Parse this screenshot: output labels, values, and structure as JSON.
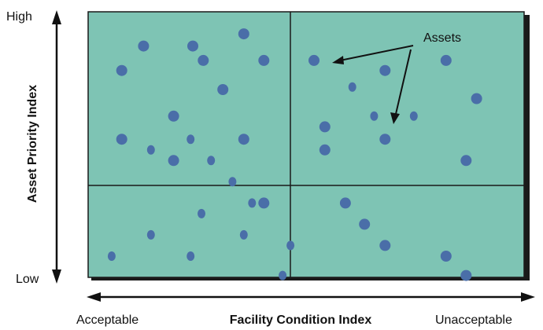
{
  "chart_data": {
    "type": "scatter",
    "title": "",
    "xlabel": "Facility Condition Index",
    "ylabel": "Asset Priority Index",
    "x_low_label": "Acceptable",
    "x_high_label": "Unacceptable",
    "y_low_label": "Low",
    "y_high_label": "High",
    "annotation": "Assets",
    "grid": "quadrants",
    "background_color": "#7ec4b4",
    "point_color": "#4a6ea8",
    "xlim": [
      0,
      100
    ],
    "ylim": [
      0,
      100
    ],
    "quadrant_split": {
      "x": 46.4,
      "y": 35.3
    },
    "points": [
      {
        "x": 12.7,
        "y": 87.1,
        "s": "big"
      },
      {
        "x": 24.0,
        "y": 87.1,
        "s": "big"
      },
      {
        "x": 35.7,
        "y": 91.7,
        "s": "big"
      },
      {
        "x": 7.7,
        "y": 77.9,
        "s": "big"
      },
      {
        "x": 26.4,
        "y": 81.7,
        "s": "big"
      },
      {
        "x": 40.3,
        "y": 81.7,
        "s": "big"
      },
      {
        "x": 30.9,
        "y": 70.7,
        "s": "big"
      },
      {
        "x": 19.6,
        "y": 60.7,
        "s": "big"
      },
      {
        "x": 7.7,
        "y": 52.0,
        "s": "big"
      },
      {
        "x": 14.4,
        "y": 48.0,
        "s": "small"
      },
      {
        "x": 23.5,
        "y": 52.0,
        "s": "small"
      },
      {
        "x": 35.7,
        "y": 52.0,
        "s": "big"
      },
      {
        "x": 19.6,
        "y": 44.0,
        "s": "big"
      },
      {
        "x": 28.2,
        "y": 44.0,
        "s": "small"
      },
      {
        "x": 33.1,
        "y": 36.0,
        "s": "small"
      },
      {
        "x": 51.8,
        "y": 81.7,
        "s": "big"
      },
      {
        "x": 68.1,
        "y": 77.9,
        "s": "big"
      },
      {
        "x": 82.1,
        "y": 81.7,
        "s": "big"
      },
      {
        "x": 60.6,
        "y": 71.7,
        "s": "small"
      },
      {
        "x": 89.1,
        "y": 67.3,
        "s": "big"
      },
      {
        "x": 65.6,
        "y": 60.7,
        "s": "small"
      },
      {
        "x": 74.7,
        "y": 60.7,
        "s": "small"
      },
      {
        "x": 54.3,
        "y": 56.7,
        "s": "big"
      },
      {
        "x": 68.1,
        "y": 52.0,
        "s": "big"
      },
      {
        "x": 54.3,
        "y": 48.0,
        "s": "big"
      },
      {
        "x": 86.7,
        "y": 44.0,
        "s": "big"
      },
      {
        "x": 37.6,
        "y": 28.0,
        "s": "small"
      },
      {
        "x": 40.3,
        "y": 28.0,
        "s": "big"
      },
      {
        "x": 26.0,
        "y": 24.0,
        "s": "small"
      },
      {
        "x": 14.4,
        "y": 16.0,
        "s": "small"
      },
      {
        "x": 35.7,
        "y": 16.0,
        "s": "small"
      },
      {
        "x": 5.4,
        "y": 8.0,
        "s": "small"
      },
      {
        "x": 23.5,
        "y": 8.0,
        "s": "small"
      },
      {
        "x": 44.6,
        "y": 0.7,
        "s": "small"
      },
      {
        "x": 46.4,
        "y": 12.0,
        "s": "small"
      },
      {
        "x": 59.0,
        "y": 28.0,
        "s": "big"
      },
      {
        "x": 63.4,
        "y": 20.0,
        "s": "big"
      },
      {
        "x": 68.1,
        "y": 12.0,
        "s": "big"
      },
      {
        "x": 82.1,
        "y": 8.0,
        "s": "big"
      },
      {
        "x": 86.7,
        "y": 0.7,
        "s": "big"
      }
    ]
  }
}
